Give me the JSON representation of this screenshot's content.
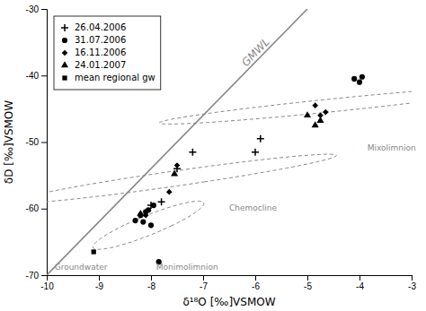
{
  "chart_data": {
    "type": "scatter",
    "x_label": "δ¹⁸O [‰]VSMOW",
    "y_label": "δD [‰]VSMOW",
    "xlim": [
      -10,
      -3
    ],
    "ylim": [
      -70,
      -30
    ],
    "xticks": [
      -10,
      -9,
      -8,
      -7,
      -6,
      -5,
      -4,
      -3
    ],
    "yticks": [
      -70,
      -60,
      -50,
      -40,
      -30
    ],
    "grid": false,
    "legend": "upper left",
    "series": [
      {
        "type": "line",
        "color": "#888888",
        "x": [
          -10,
          -5
        ],
        "values": [
          -70,
          -30
        ]
      },
      {
        "name": "26.04.2006",
        "type": "scatter",
        "marker": "plus",
        "color": "#000000",
        "x": [
          -8.0,
          -7.8,
          -7.5,
          -7.2,
          -6.0,
          -5.9
        ],
        "values": [
          -59.5,
          -59.0,
          -54.0,
          -51.5,
          -51.5,
          -49.5
        ]
      },
      {
        "name": "31.07.2006",
        "type": "scatter",
        "marker": "circle",
        "color": "#000000",
        "x": [
          -8.1,
          -8.2,
          -8.05,
          -7.95,
          -8.3,
          -8.15,
          -8.0,
          -7.85,
          -4.1,
          -4.0,
          -3.95
        ],
        "values": [
          -60.5,
          -61.0,
          -60.2,
          -59.5,
          -61.8,
          -62.0,
          -62.5,
          -68.0,
          -40.5,
          -41.0,
          -40.2
        ]
      },
      {
        "name": "16.11.2006",
        "type": "scatter",
        "marker": "diamond",
        "color": "#000000",
        "x": [
          -8.1,
          -7.65,
          -7.5,
          -4.85,
          -4.75,
          -4.65
        ],
        "values": [
          -61.0,
          -57.5,
          -53.5,
          -44.5,
          -46.0,
          -45.5
        ]
      },
      {
        "name": "24.01.2007",
        "type": "scatter",
        "marker": "triangle",
        "color": "#000000",
        "x": [
          -8.2,
          -7.55,
          -5.0,
          -4.85,
          -4.75
        ],
        "values": [
          -60.8,
          -54.8,
          -46.0,
          -47.5,
          -46.8
        ]
      },
      {
        "name": "mean regional gw",
        "type": "scatter",
        "marker": "square",
        "color": "#000000",
        "x": [
          -9.1
        ],
        "values": [
          -66.5
        ]
      }
    ],
    "ellipses": [
      {
        "cx": -8.05,
        "cy": -62.5,
        "width": 0.9,
        "height": 7.5,
        "angle": -15,
        "color": "#888888"
      },
      {
        "cx": -7.55,
        "cy": -55.5,
        "width": 1.5,
        "height": 9.5,
        "angle": -40,
        "color": "#888888"
      },
      {
        "cx": -4.55,
        "cy": -44.5,
        "width": 1.5,
        "height": 8.5,
        "angle": -50,
        "color": "#888888"
      }
    ],
    "annotations": [
      {
        "text": "GMWL",
        "x": -5.9,
        "y": -37.2,
        "color": "#888888"
      },
      {
        "text": "Groundwater",
        "x": -9.85,
        "y": -69.5,
        "color": "#888888"
      },
      {
        "text": "Monimolimnion",
        "x": -7.9,
        "y": -69.5,
        "color": "#888888"
      },
      {
        "text": "Chemocline",
        "x": -6.5,
        "y": -60.5,
        "color": "#888888"
      },
      {
        "text": "Mixolimnion",
        "x": -3.85,
        "y": -51.5,
        "color": "#888888"
      }
    ]
  }
}
